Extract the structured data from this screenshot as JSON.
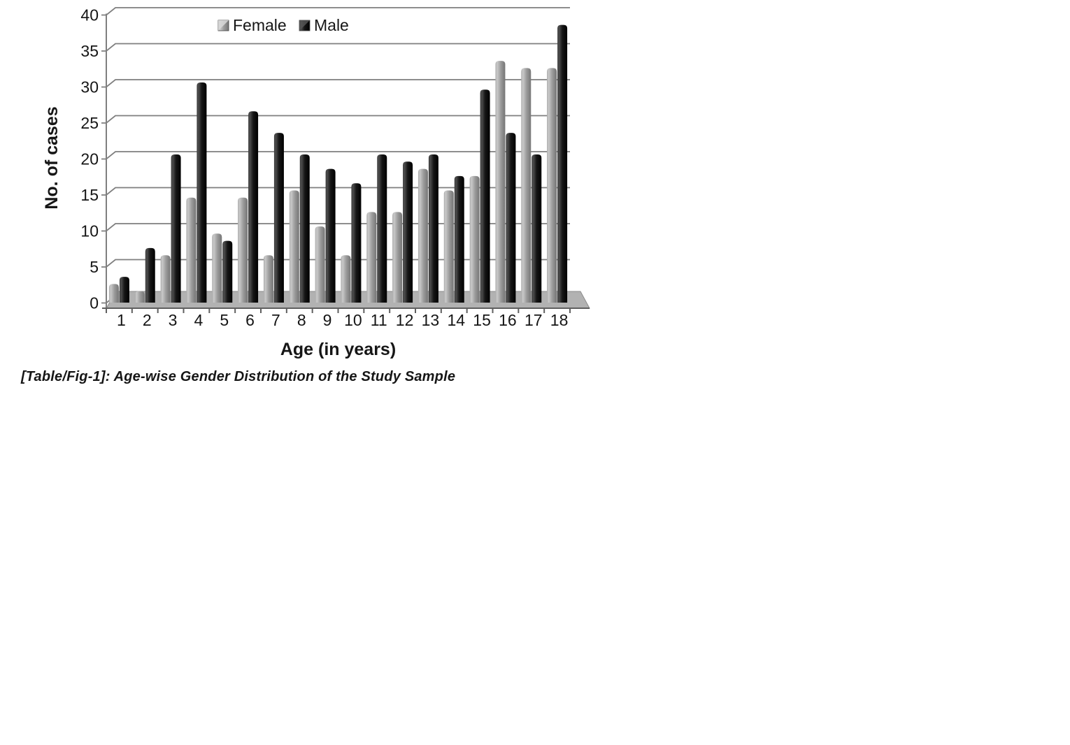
{
  "figure": {
    "caption": "[Table/Fig-1]: Age-wise Gender Distribution of the Study Sample"
  },
  "chart_data": {
    "type": "bar",
    "style": "3d-clustered-column",
    "title": "",
    "xlabel": "Age (in years)",
    "ylabel": "No. of cases",
    "categories": [
      "1",
      "2",
      "3",
      "4",
      "5",
      "6",
      "7",
      "8",
      "9",
      "10",
      "11",
      "12",
      "13",
      "14",
      "15",
      "16",
      "17",
      "18"
    ],
    "series": [
      {
        "name": "Female",
        "color": "#9b9b9b",
        "values": [
          2,
          1,
          6,
          14,
          9,
          14,
          6,
          15,
          10,
          6,
          12,
          12,
          18,
          15,
          17,
          33,
          32,
          32
        ]
      },
      {
        "name": "Male",
        "color": "#1a1a1a",
        "values": [
          3,
          7,
          20,
          30,
          8,
          26,
          23,
          20,
          18,
          16,
          20,
          19,
          20,
          17,
          29,
          23,
          20,
          38
        ]
      }
    ],
    "ylim": [
      0,
      40
    ],
    "ytick_step": 5,
    "yticks": [
      0,
      5,
      10,
      15,
      20,
      25,
      30,
      35,
      40
    ],
    "grid": true,
    "grid_color": "#7f7f7f",
    "axis_color": "#5f5f5f",
    "floor_color": "#b2b2b2",
    "legend_position": "top-inside",
    "legend_labels": [
      "Female",
      "Male"
    ]
  }
}
